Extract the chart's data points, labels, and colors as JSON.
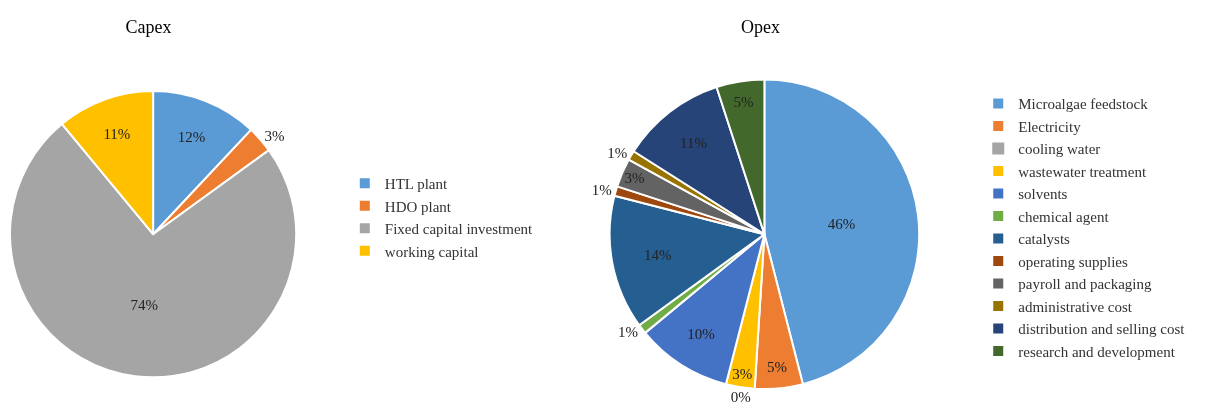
{
  "chart_data": [
    {
      "type": "pie",
      "title": "Capex",
      "categories": [
        "HTL plant",
        "HDO plant",
        "Fixed capital investment",
        "working capital"
      ],
      "values": [
        12,
        3,
        74,
        11
      ],
      "value_labels": [
        "12%",
        "3%",
        "74%",
        "11%"
      ],
      "colors": [
        "#5b9bd5",
        "#ed7d31",
        "#a5a5a5",
        "#ffc000"
      ],
      "legend": "right"
    },
    {
      "type": "pie",
      "title": "Opex",
      "categories": [
        "Microalgae feedstock",
        "Electricity",
        "cooling water",
        "wastewater treatment",
        "solvents",
        "chemical agent",
        "catalysts",
        "operating supplies",
        "payroll and packaging",
        "administrative cost",
        "distribution and selling cost",
        "research and development"
      ],
      "values": [
        46,
        5,
        0,
        3,
        10,
        1,
        14,
        1,
        3,
        1,
        11,
        5
      ],
      "value_labels": [
        "46%",
        "5%",
        "0%",
        "3%",
        "10%",
        "1%",
        "14%",
        "1%",
        "3%",
        "1%",
        "11%",
        "5%"
      ],
      "colors": [
        "#5b9bd5",
        "#ed7d31",
        "#a5a5a5",
        "#ffc000",
        "#4472c4",
        "#70ad47",
        "#255e91",
        "#9e480e",
        "#636363",
        "#997300",
        "#264478",
        "#43682b"
      ],
      "legend": "right"
    }
  ]
}
